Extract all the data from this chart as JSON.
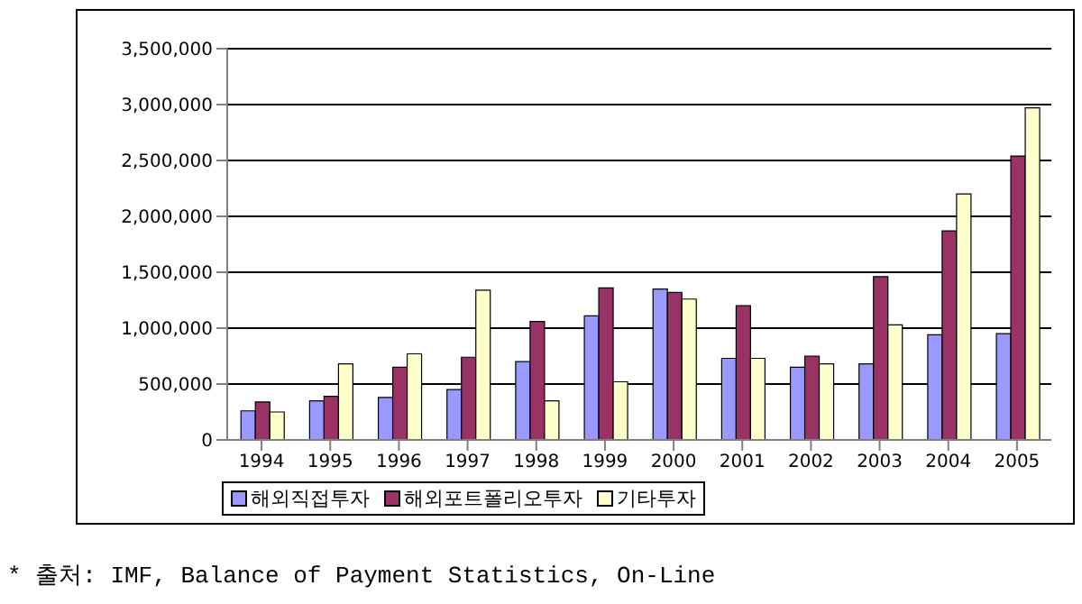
{
  "chart_data": {
    "type": "bar",
    "categories": [
      "1994",
      "1995",
      "1996",
      "1997",
      "1998",
      "1999",
      "2000",
      "2001",
      "2002",
      "2003",
      "2004",
      "2005"
    ],
    "series": [
      {
        "name": "해외직접투자",
        "color": "#9999ff",
        "values": [
          260000,
          350000,
          380000,
          450000,
          700000,
          1110000,
          1350000,
          730000,
          650000,
          680000,
          940000,
          950000
        ]
      },
      {
        "name": "해외포트폴리오투자",
        "color": "#993366",
        "values": [
          340000,
          390000,
          650000,
          740000,
          1060000,
          1360000,
          1320000,
          1200000,
          750000,
          1460000,
          1870000,
          2540000
        ]
      },
      {
        "name": "기타투자",
        "color": "#ffffcc",
        "values": [
          250000,
          680000,
          770000,
          1340000,
          350000,
          520000,
          1260000,
          730000,
          680000,
          1030000,
          2200000,
          2970000
        ]
      }
    ],
    "ylim": [
      0,
      3500000
    ],
    "yticks": [
      0,
      {
        "value": 500000,
        "label": "500,000"
      },
      {
        "value": 1000000,
        "label": "1,000,000"
      },
      {
        "value": 1500000,
        "label": "1,500,000"
      },
      {
        "value": 2000000,
        "label": "2,000,000"
      },
      {
        "value": 2500000,
        "label": "2,500,000"
      },
      {
        "value": 3000000,
        "label": "3,000,000"
      },
      {
        "value": 3500000,
        "label": "3,500,000"
      }
    ],
    "grid": "y",
    "legend": "bottom",
    "annotations": [
      "* 출처: IMF, Balance of Payment Statistics, On-Line"
    ]
  }
}
